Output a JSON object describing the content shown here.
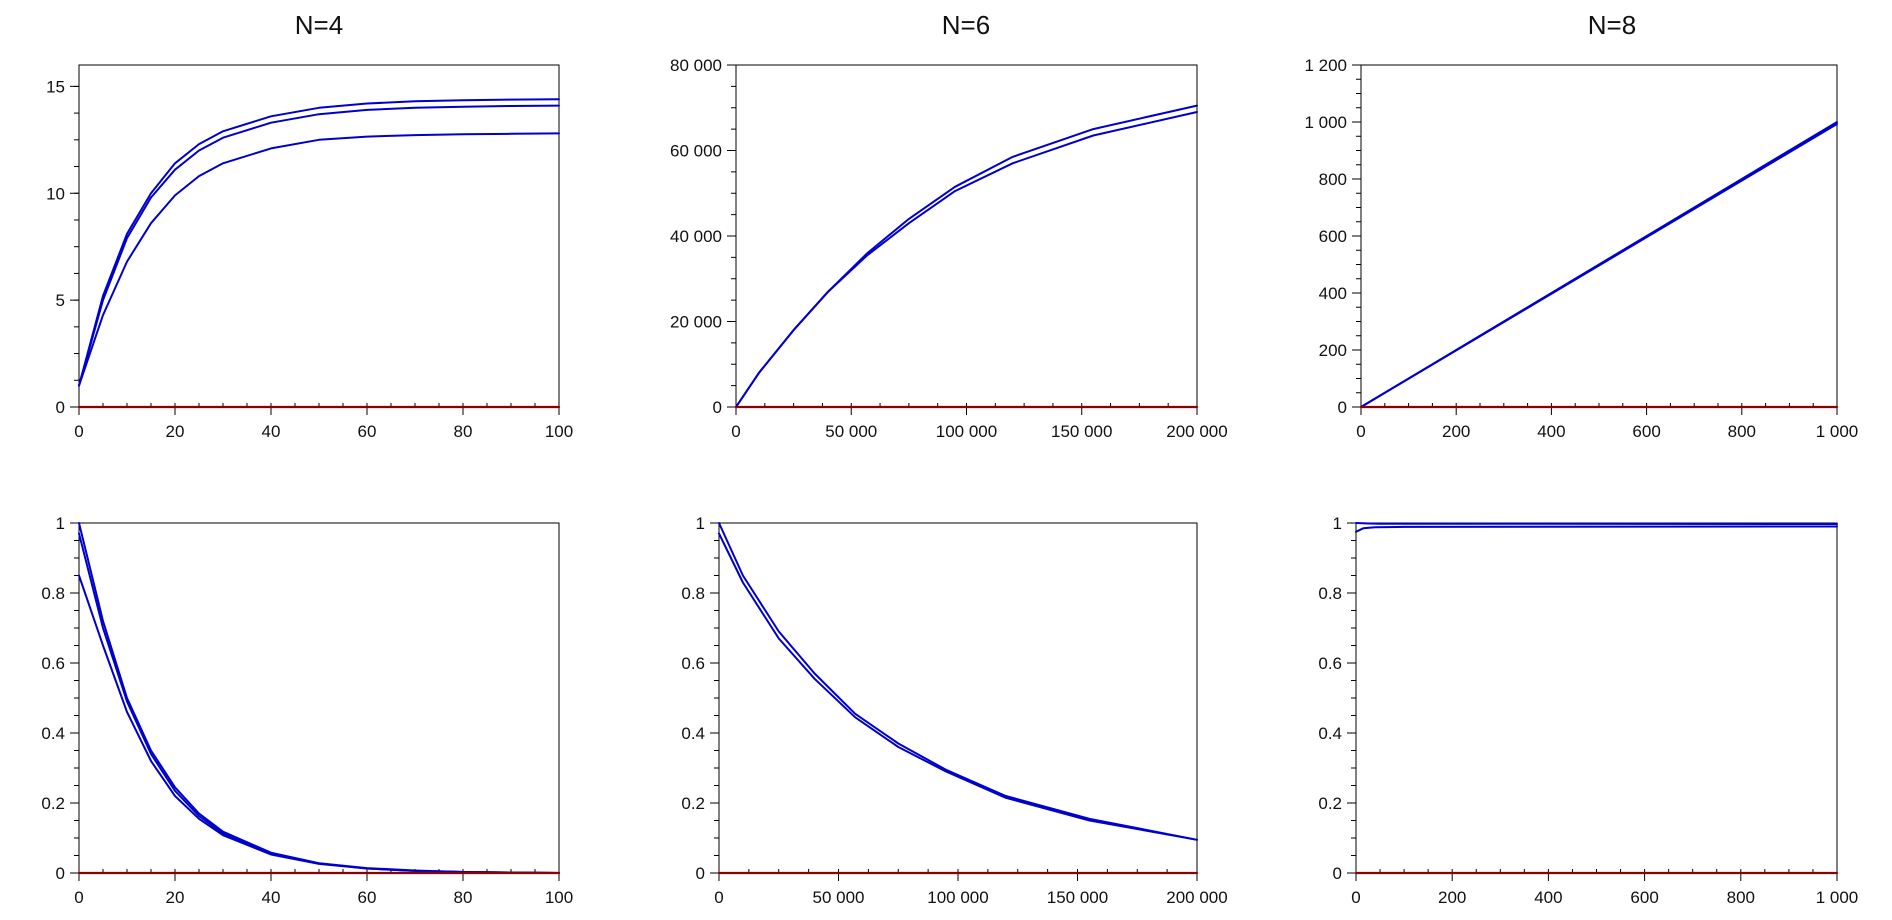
{
  "colors": {
    "series": "#0000cc",
    "baseline": "#8b0000",
    "axis": "#000000"
  },
  "titles": [
    "N=4",
    "N=6",
    "N=8"
  ],
  "chart_data": [
    {
      "type": "line",
      "title": "N=4",
      "xlabel": "",
      "ylabel": "",
      "xlim": [
        0,
        100
      ],
      "ylim": [
        0,
        16
      ],
      "xticks": [
        0,
        20,
        40,
        60,
        80,
        100
      ],
      "xtick_labels": [
        "0",
        "20",
        "40",
        "60",
        "80",
        "100"
      ],
      "yticks": [
        0,
        5,
        10,
        15
      ],
      "ytick_labels": [
        "0",
        "5",
        "10",
        "15"
      ],
      "grid": false,
      "series": [
        {
          "x": [
            0,
            5,
            10,
            15,
            20,
            25,
            30,
            40,
            50,
            60,
            70,
            80,
            90,
            100
          ],
          "y": [
            1,
            5.2,
            8.1,
            10.0,
            11.4,
            12.3,
            12.9,
            13.6,
            14.0,
            14.2,
            14.3,
            14.35,
            14.38,
            14.4
          ]
        },
        {
          "x": [
            0,
            5,
            10,
            15,
            20,
            25,
            30,
            40,
            50,
            60,
            70,
            80,
            90,
            100
          ],
          "y": [
            1,
            5.0,
            7.9,
            9.8,
            11.1,
            12.0,
            12.6,
            13.3,
            13.7,
            13.9,
            14.0,
            14.05,
            14.08,
            14.1
          ]
        },
        {
          "x": [
            0,
            5,
            10,
            15,
            20,
            25,
            30,
            40,
            50,
            60,
            70,
            80,
            90,
            100
          ],
          "y": [
            1,
            4.3,
            6.8,
            8.6,
            9.9,
            10.8,
            11.4,
            12.1,
            12.5,
            12.65,
            12.72,
            12.76,
            12.78,
            12.8
          ]
        },
        {
          "x": [
            0,
            100
          ],
          "y": [
            0,
            0
          ],
          "baseline": true
        }
      ]
    },
    {
      "type": "line",
      "title": "N=6",
      "xlabel": "",
      "ylabel": "",
      "xlim": [
        0,
        200000
      ],
      "ylim": [
        0,
        80000
      ],
      "xticks": [
        0,
        50000,
        100000,
        150000,
        200000
      ],
      "xtick_labels": [
        "0",
        "50 000",
        "100 000",
        "150 000",
        "200 000"
      ],
      "yticks": [
        0,
        20000,
        40000,
        60000,
        80000
      ],
      "ytick_labels": [
        "0",
        "20 000",
        "40 000",
        "60 000",
        "80 000"
      ],
      "grid": false,
      "series": [
        {
          "x": [
            0,
            10000,
            25000,
            40000,
            57000,
            75000,
            95000,
            120000,
            155000,
            200000
          ],
          "y": [
            0,
            8000,
            18000,
            27000,
            36000,
            44000,
            51500,
            58500,
            65000,
            70500
          ]
        },
        {
          "x": [
            0,
            10000,
            25000,
            40000,
            57000,
            75000,
            95000,
            120000,
            155000,
            200000
          ],
          "y": [
            0,
            8000,
            18000,
            27000,
            35500,
            43000,
            50500,
            57000,
            63500,
            69000
          ]
        },
        {
          "x": [
            0,
            200000
          ],
          "y": [
            0,
            0
          ],
          "baseline": true
        }
      ]
    },
    {
      "type": "line",
      "title": "N=8",
      "xlabel": "",
      "ylabel": "",
      "xlim": [
        0,
        1000
      ],
      "ylim": [
        0,
        1200
      ],
      "xticks": [
        0,
        200,
        400,
        600,
        800,
        1000
      ],
      "xtick_labels": [
        "0",
        "200",
        "400",
        "600",
        "800",
        "1 000"
      ],
      "yticks": [
        0,
        200,
        400,
        600,
        800,
        1000,
        1200
      ],
      "ytick_labels": [
        "0",
        "200",
        "400",
        "600",
        "800",
        "1 000",
        "1 200"
      ],
      "grid": false,
      "series": [
        {
          "x": [
            0,
            1000
          ],
          "y": [
            0,
            1000
          ]
        },
        {
          "x": [
            0,
            1000
          ],
          "y": [
            0,
            993
          ]
        },
        {
          "x": [
            0,
            1000
          ],
          "y": [
            0,
            0
          ],
          "baseline": true
        }
      ]
    },
    {
      "type": "line",
      "title": "",
      "xlabel": "",
      "ylabel": "",
      "xlim": [
        0,
        100
      ],
      "ylim": [
        0,
        1
      ],
      "xticks": [
        0,
        20,
        40,
        60,
        80,
        100
      ],
      "xtick_labels": [
        "0",
        "20",
        "40",
        "60",
        "80",
        "100"
      ],
      "yticks": [
        0,
        0.2,
        0.4,
        0.6,
        0.8,
        1
      ],
      "ytick_labels": [
        "0",
        "0.2",
        "0.4",
        "0.6",
        "0.8",
        "1"
      ],
      "grid": false,
      "series": [
        {
          "x": [
            0,
            5,
            10,
            15,
            20,
            25,
            30,
            40,
            50,
            60,
            70,
            80,
            90,
            100
          ],
          "y": [
            1.0,
            0.72,
            0.5,
            0.35,
            0.245,
            0.17,
            0.118,
            0.058,
            0.028,
            0.014,
            0.007,
            0.003,
            0.0015,
            0.0
          ]
        },
        {
          "x": [
            0,
            5,
            10,
            15,
            20,
            25,
            30,
            40,
            50,
            60,
            70,
            80,
            90,
            100
          ],
          "y": [
            0.97,
            0.7,
            0.49,
            0.34,
            0.235,
            0.163,
            0.113,
            0.055,
            0.027,
            0.013,
            0.006,
            0.003,
            0.0015,
            0.0
          ]
        },
        {
          "x": [
            0,
            5,
            10,
            15,
            20,
            25,
            30,
            40,
            50,
            60,
            70,
            80,
            90,
            100
          ],
          "y": [
            0.85,
            0.65,
            0.46,
            0.32,
            0.22,
            0.155,
            0.108,
            0.053,
            0.026,
            0.013,
            0.006,
            0.003,
            0.0015,
            0.0
          ]
        },
        {
          "x": [
            0,
            100
          ],
          "y": [
            0,
            0
          ],
          "baseline": true
        }
      ]
    },
    {
      "type": "line",
      "title": "",
      "xlabel": "",
      "ylabel": "",
      "xlim": [
        0,
        200000
      ],
      "ylim": [
        0,
        1
      ],
      "xticks": [
        0,
        50000,
        100000,
        150000,
        200000
      ],
      "xtick_labels": [
        "0",
        "50 000",
        "100 000",
        "150 000",
        "200 000"
      ],
      "yticks": [
        0,
        0.2,
        0.4,
        0.6,
        0.8,
        1
      ],
      "ytick_labels": [
        "0",
        "0.2",
        "0.4",
        "0.6",
        "0.8",
        "1"
      ],
      "grid": false,
      "series": [
        {
          "x": [
            0,
            10000,
            25000,
            40000,
            57000,
            75000,
            95000,
            120000,
            155000,
            200000
          ],
          "y": [
            1.0,
            0.85,
            0.69,
            0.57,
            0.455,
            0.37,
            0.295,
            0.22,
            0.155,
            0.095
          ]
        },
        {
          "x": [
            0,
            10000,
            25000,
            40000,
            57000,
            75000,
            95000,
            120000,
            155000,
            200000
          ],
          "y": [
            0.97,
            0.83,
            0.67,
            0.555,
            0.445,
            0.36,
            0.29,
            0.215,
            0.15,
            0.095
          ]
        },
        {
          "x": [
            0,
            200000
          ],
          "y": [
            0,
            0
          ],
          "baseline": true
        }
      ]
    },
    {
      "type": "line",
      "title": "",
      "xlabel": "",
      "ylabel": "",
      "xlim": [
        0,
        1000
      ],
      "ylim": [
        0,
        1
      ],
      "xticks": [
        0,
        200,
        400,
        600,
        800,
        1000
      ],
      "xtick_labels": [
        "0",
        "200",
        "400",
        "600",
        "800",
        "1 000"
      ],
      "yticks": [
        0,
        0.2,
        0.4,
        0.6,
        0.8,
        1
      ],
      "ytick_labels": [
        "0",
        "0.2",
        "0.4",
        "0.6",
        "0.8",
        "1"
      ],
      "grid": false,
      "series": [
        {
          "x": [
            0,
            20,
            50,
            1000
          ],
          "y": [
            1.0,
            0.999,
            0.998,
            0.997
          ]
        },
        {
          "x": [
            0,
            15,
            40,
            100,
            1000
          ],
          "y": [
            0.975,
            0.985,
            0.988,
            0.989,
            0.99
          ]
        },
        {
          "x": [
            0,
            1000
          ],
          "y": [
            0,
            0
          ],
          "baseline": true
        }
      ]
    }
  ]
}
